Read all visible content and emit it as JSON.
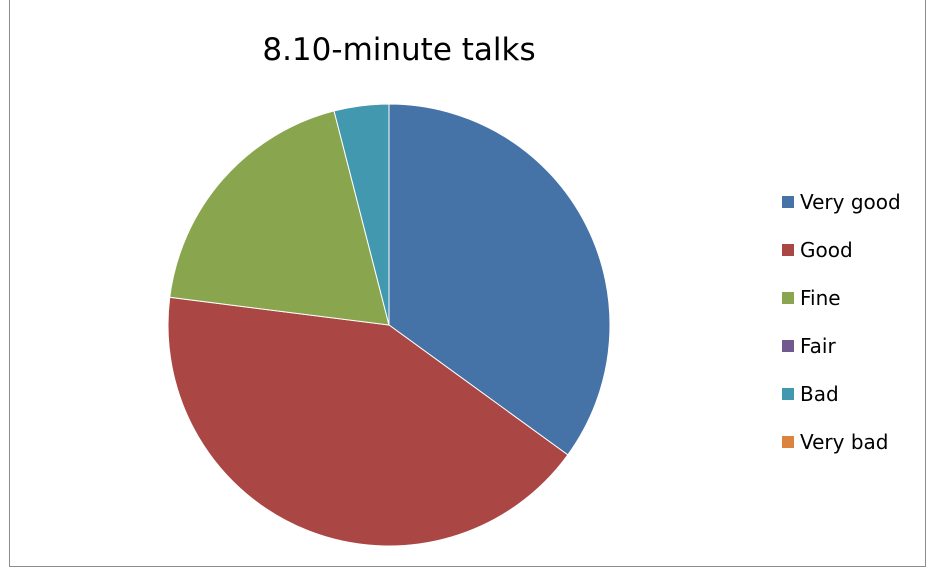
{
  "chart_data": {
    "type": "pie",
    "title": "8.10-minute talks",
    "categories": [
      "Very good",
      "Good",
      "Fine",
      "Fair",
      "Bad",
      "Very bad"
    ],
    "values": [
      35,
      42,
      19,
      0,
      4,
      0
    ],
    "colors": [
      "#4572a7",
      "#aa4643",
      "#89a54e",
      "#71588f",
      "#4198af",
      "#db843d"
    ],
    "legend_position": "right"
  }
}
